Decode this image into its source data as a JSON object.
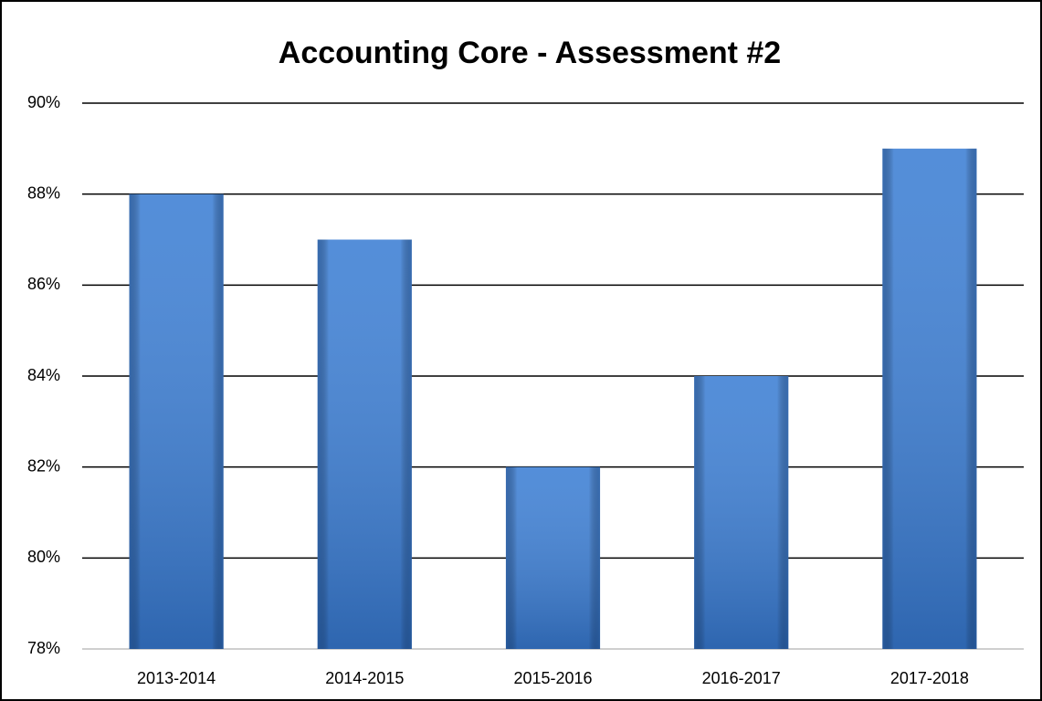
{
  "chart_data": {
    "type": "bar",
    "title": "Accounting Core - Assessment #2",
    "categories": [
      "2013-2014",
      "2014-2015",
      "2015-2016",
      "2016-2017",
      "2017-2018"
    ],
    "values": [
      88,
      87,
      82,
      84,
      89
    ],
    "color": "#3d7fd4",
    "ylim": [
      78,
      90
    ],
    "yticks": [
      {
        "value": 78,
        "label": "78%"
      },
      {
        "value": 80,
        "label": "80%"
      },
      {
        "value": 82,
        "label": "82%"
      },
      {
        "value": 84,
        "label": "84%"
      },
      {
        "value": 86,
        "label": "86%"
      },
      {
        "value": 88,
        "label": "88%"
      },
      {
        "value": 90,
        "label": "90%"
      }
    ],
    "grid": true
  }
}
